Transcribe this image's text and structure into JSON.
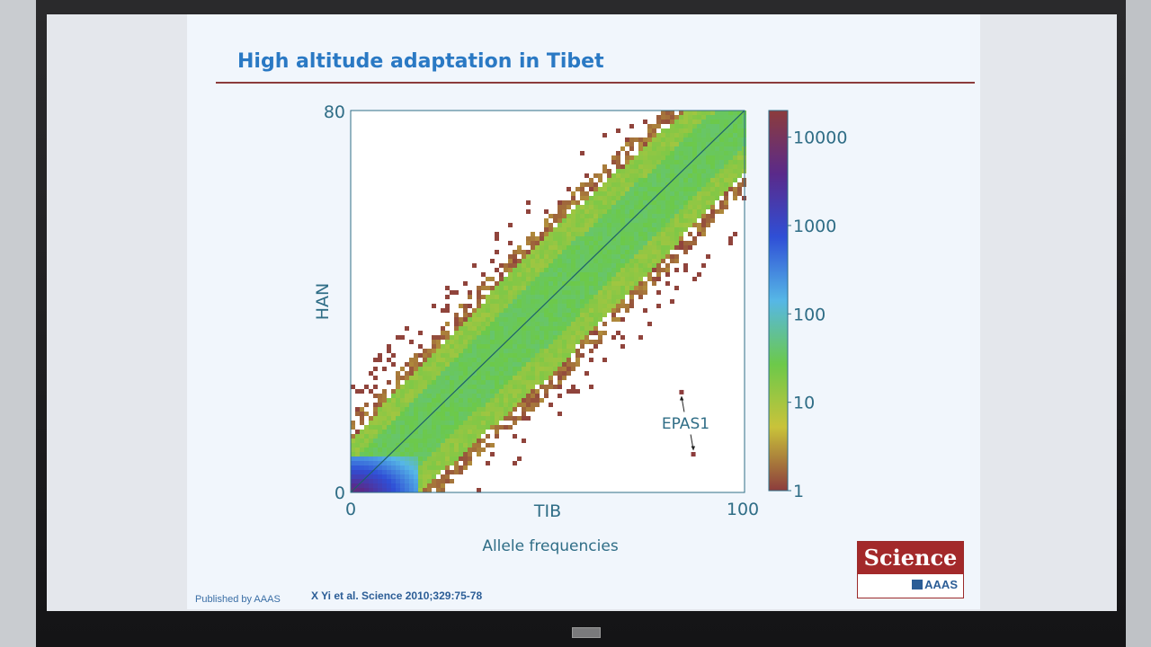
{
  "slide": {
    "title": "High altitude adaptation in Tibet",
    "credit": "Published by AAAS",
    "citation": "X Yi et al. Science 2010;329:75-78",
    "logo": {
      "word": "Science",
      "publisher": "AAAS"
    }
  },
  "colors": {
    "title": "#2a79c4",
    "rule": "#8c3c3c",
    "axis_text": "#2f6d86",
    "logo_red": "#a3292a"
  },
  "chart_data": {
    "type": "heatmap",
    "title": "",
    "xlabel": "TIB",
    "ylabel": "HAN",
    "caption": "Allele frequencies",
    "x_ticks": [
      "0",
      "100"
    ],
    "y_ticks": [
      "0",
      "80"
    ],
    "xlim": [
      0,
      100
    ],
    "ylim": [
      0,
      80
    ],
    "diagonal_line": {
      "from": [
        0,
        0
      ],
      "to": [
        100,
        80
      ]
    },
    "colorbar": {
      "scale": "log",
      "range": [
        1,
        20000
      ],
      "ticks": [
        "1",
        "10",
        "100",
        "1000",
        "10000"
      ],
      "tick_values": [
        1,
        10,
        100,
        1000,
        10000
      ],
      "colors": [
        "#8c3c3c",
        "#c9c33a",
        "#6cc94a",
        "#56b7e6",
        "#2f4fd6",
        "#5a2a8a",
        "#8c3c3c"
      ]
    },
    "annotation": {
      "label": "EPAS1",
      "point_upper": [
        84,
        21
      ],
      "point_lower": [
        87,
        8
      ]
    }
  }
}
